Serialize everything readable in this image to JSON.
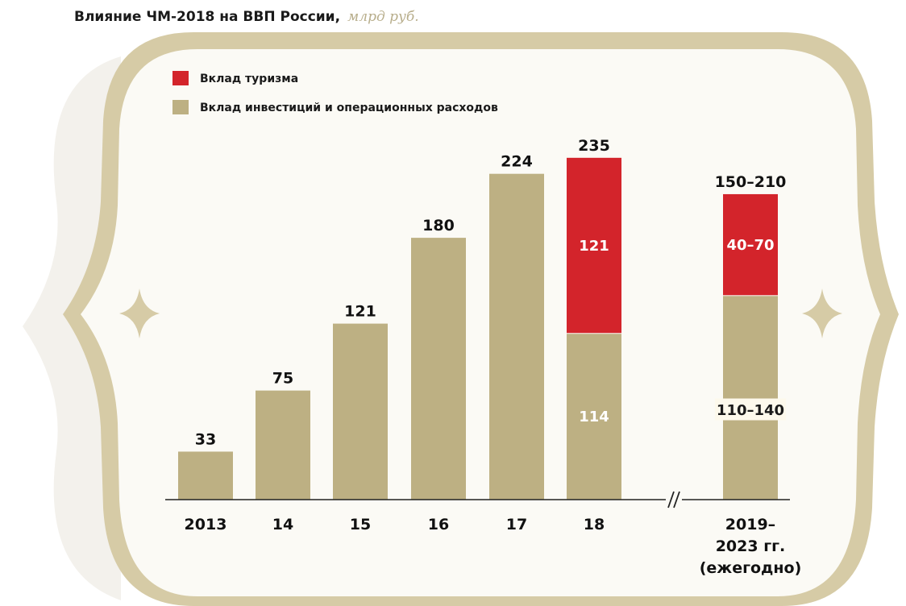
{
  "title": "Влияние ЧМ-2018 на ВВП России,",
  "unit": "млрд руб.",
  "colors": {
    "tourism": "#d3242b",
    "investment": "#bdb083",
    "frame_outer": "#d6cba6",
    "frame_inner": "#fbfaf5",
    "axis": "#222222",
    "label_box": "#fdf9ec"
  },
  "chart_data": {
    "type": "bar",
    "stacked": true,
    "categories": [
      "2013",
      "14",
      "15",
      "16",
      "17",
      "18",
      "2019–2023 гг. (ежегодно)"
    ],
    "category_labels": [
      [
        "2013"
      ],
      [
        "14"
      ],
      [
        "15"
      ],
      [
        "16"
      ],
      [
        "17"
      ],
      [
        "18"
      ],
      [
        "2019–",
        "2023 гг.",
        "(ежегодно)"
      ]
    ],
    "series": [
      {
        "name": "Вклад инвестиций и операционных расходов",
        "values": [
          33,
          75,
          121,
          180,
          224,
          114,
          140
        ],
        "range": [
          null,
          null,
          null,
          null,
          null,
          null,
          [
            110,
            140
          ]
        ],
        "labels": [
          "",
          "",
          "",
          "",
          "",
          "114",
          "110–140"
        ]
      },
      {
        "name": "Вклад туризма",
        "values": [
          0,
          0,
          0,
          0,
          0,
          121,
          70
        ],
        "range": [
          null,
          null,
          null,
          null,
          null,
          null,
          [
            40,
            70
          ]
        ],
        "labels": [
          "",
          "",
          "",
          "",
          "",
          "121",
          "40–70"
        ]
      }
    ],
    "totals": [
      "33",
      "75",
      "121",
      "180",
      "224",
      "235",
      "150–210"
    ],
    "axis_break_after_index": 5,
    "ylim": [
      0,
      240
    ],
    "legend_position": "top-left",
    "grid": false
  }
}
